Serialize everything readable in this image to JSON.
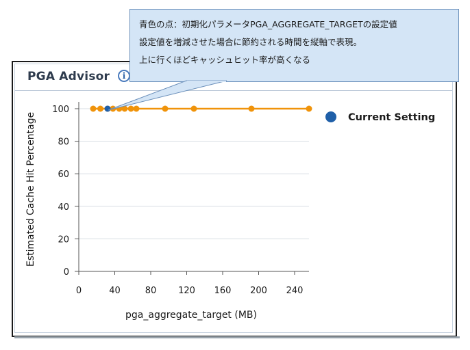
{
  "panel": {
    "title": "PGA Advisor",
    "info_icon": "info-icon",
    "info_glyph": "i"
  },
  "tooltip": {
    "lines": [
      "青色の点：初期化パラメータPGA_AGGREGATE_TARGETの設定値",
      "設定値を増減させた場合に節約される時間を縦軸で表現。",
      "上に行くほどキャッシュヒット率が高くなる"
    ]
  },
  "legend": {
    "label": "Current Setting",
    "color": "#1f5fa8"
  },
  "colors": {
    "series": "#f0930a",
    "current": "#1f5fa8",
    "grid": "#d7dde3"
  },
  "chart_data": {
    "type": "line",
    "xlabel": "pga_aggregate_target (MB)",
    "ylabel": "Estimated Cache Hit Percentage",
    "xlim": [
      0,
      256
    ],
    "ylim": [
      0,
      100
    ],
    "x_ticks": [
      0,
      40,
      80,
      120,
      160,
      200,
      240
    ],
    "y_ticks": [
      0,
      20,
      40,
      60,
      80,
      100
    ],
    "grid": true,
    "legend_position": "top-right",
    "series": [
      {
        "x": [
          16,
          24,
          32,
          38,
          45,
          51,
          58,
          64,
          96,
          128,
          192,
          256
        ],
        "y": [
          100,
          100,
          100,
          100,
          100,
          100,
          100,
          100,
          100,
          100,
          100,
          100
        ]
      }
    ],
    "current_setting": {
      "x": 32,
      "y": 100
    }
  }
}
